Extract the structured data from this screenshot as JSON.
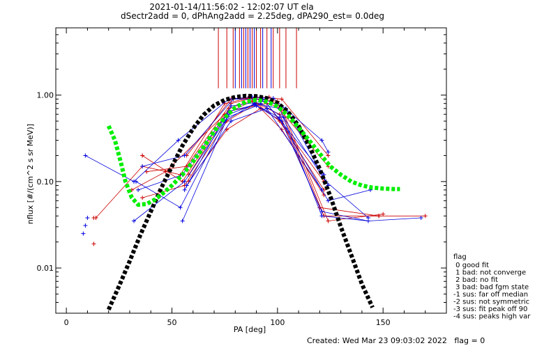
{
  "chart_data": {
    "type": "line",
    "title_line1": "2021-01-14/11:56:02 - 12:02:07 UT ela",
    "title_line2": "dSectr2add = 0, dPhAng2add = 2.25deg, dPA290_est=    0.0deg",
    "xlabel": "PA [deg]",
    "ylabel": "nflux [#/(cm^2 s sr MeV)]",
    "xlim": [
      -5,
      180
    ],
    "ylim": [
      0.003,
      6.0
    ],
    "y_scale": "log",
    "x_ticks": [
      0,
      50,
      100,
      150
    ],
    "y_ticks": [
      0.01,
      0.1,
      1.0
    ],
    "y_tick_labels": [
      "0.01",
      "0.10",
      "1.00"
    ],
    "colors": {
      "red": "#cc0000",
      "blue": "#0000dd",
      "green": "#00ee00",
      "black": "#000000"
    },
    "red_lines_x": [
      72,
      76,
      79,
      82,
      84,
      86,
      88,
      90,
      92,
      95,
      98,
      101,
      104,
      109
    ],
    "blue_lines_x": [
      80,
      83,
      85,
      87,
      89,
      93,
      97
    ],
    "red_series": [
      [
        [
          14,
          0.038
        ],
        [
          36,
          0.15
        ],
        [
          54,
          0.12
        ],
        [
          75,
          0.8
        ],
        [
          86,
          0.92
        ],
        [
          100,
          0.85
        ],
        [
          122,
          0.04
        ],
        [
          148,
          0.04
        ],
        [
          170,
          0.04
        ]
      ],
      [
        [
          36,
          0.2
        ],
        [
          55,
          0.1
        ],
        [
          77,
          0.7
        ],
        [
          90,
          0.9
        ],
        [
          102,
          0.7
        ],
        [
          124,
          0.035
        ],
        [
          150,
          0.042
        ]
      ],
      [
        [
          31,
          0.08
        ],
        [
          47,
          0.13
        ],
        [
          75,
          0.6
        ],
        [
          88,
          0.85
        ],
        [
          101,
          0.6
        ],
        [
          120,
          0.05
        ],
        [
          148,
          0.04
        ]
      ],
      [
        [
          36,
          0.065
        ],
        [
          56,
          0.09
        ],
        [
          76,
          0.5
        ],
        [
          90,
          0.8
        ],
        [
          101,
          0.5
        ],
        [
          122,
          0.08
        ]
      ],
      [
        [
          38,
          0.13
        ],
        [
          57,
          0.15
        ],
        [
          78,
          0.8
        ],
        [
          90,
          0.95
        ],
        [
          102,
          0.9
        ],
        [
          124,
          0.2
        ]
      ],
      [
        [
          58,
          0.1
        ],
        [
          76,
          0.4
        ],
        [
          92,
          0.7
        ],
        [
          102,
          0.4
        ],
        [
          122,
          0.07
        ]
      ],
      [
        [
          57,
          0.2
        ],
        [
          78,
          0.9
        ],
        [
          96,
          0.95
        ],
        [
          124,
          0.15
        ]
      ],
      [
        [
          58,
          0.12
        ],
        [
          77,
          0.65
        ],
        [
          95,
          0.8
        ],
        [
          122,
          0.1
        ]
      ]
    ],
    "red_isolated": [
      [
        13,
        0.019
      ],
      [
        13,
        0.038
      ],
      [
        36,
        0.2
      ]
    ],
    "blue_series": [
      [
        [
          9,
          0.2
        ],
        [
          32,
          0.1
        ],
        [
          53,
          0.3
        ],
        [
          77,
          0.9
        ],
        [
          88,
          0.95
        ],
        [
          98,
          0.92
        ],
        [
          121,
          0.3
        ],
        [
          124,
          0.22
        ]
      ],
      [
        [
          32,
          0.035
        ],
        [
          56,
          0.1
        ],
        [
          75,
          0.5
        ],
        [
          89,
          0.8
        ],
        [
          101,
          0.7
        ],
        [
          121,
          0.04
        ],
        [
          143,
          0.035
        ],
        [
          168,
          0.038
        ]
      ],
      [
        [
          33,
          0.1
        ],
        [
          54,
          0.05
        ],
        [
          76,
          0.55
        ],
        [
          90,
          0.75
        ],
        [
          102,
          0.5
        ],
        [
          124,
          0.06
        ],
        [
          144,
          0.08
        ]
      ],
      [
        [
          34,
          0.08
        ],
        [
          55,
          0.12
        ],
        [
          77,
          0.65
        ],
        [
          92,
          0.8
        ],
        [
          103,
          0.55
        ],
        [
          124,
          0.09
        ]
      ],
      [
        [
          36,
          0.15
        ],
        [
          56,
          0.2
        ],
        [
          79,
          0.9
        ],
        [
          93,
          0.9
        ],
        [
          104,
          0.7
        ],
        [
          123,
          0.1
        ],
        [
          143,
          0.038
        ]
      ],
      [
        [
          55,
          0.035
        ],
        [
          77,
          0.6
        ],
        [
          89,
          0.78
        ],
        [
          101,
          0.55
        ],
        [
          121,
          0.045
        ],
        [
          143,
          0.035
        ]
      ],
      [
        [
          56,
          0.08
        ],
        [
          78,
          0.75
        ],
        [
          94,
          0.85
        ],
        [
          122,
          0.12
        ]
      ],
      [
        [
          57,
          0.09
        ],
        [
          78,
          0.5
        ],
        [
          95,
          0.7
        ],
        [
          121,
          0.08
        ]
      ]
    ],
    "blue_isolated": [
      [
        8,
        0.025
      ],
      [
        9,
        0.031
      ],
      [
        10,
        0.038
      ]
    ],
    "green_fit": [
      [
        20,
        0.44
      ],
      [
        23,
        0.3
      ],
      [
        26,
        0.16
      ],
      [
        28,
        0.1
      ],
      [
        31,
        0.065
      ],
      [
        34,
        0.054
      ],
      [
        38,
        0.055
      ],
      [
        42,
        0.062
      ],
      [
        46,
        0.074
      ],
      [
        50,
        0.09
      ],
      [
        55,
        0.12
      ],
      [
        60,
        0.17
      ],
      [
        65,
        0.25
      ],
      [
        70,
        0.38
      ],
      [
        75,
        0.55
      ],
      [
        80,
        0.72
      ],
      [
        85,
        0.84
      ],
      [
        90,
        0.88
      ],
      [
        95,
        0.84
      ],
      [
        100,
        0.74
      ],
      [
        105,
        0.58
      ],
      [
        110,
        0.42
      ],
      [
        115,
        0.3
      ],
      [
        120,
        0.21
      ],
      [
        125,
        0.15
      ],
      [
        130,
        0.12
      ],
      [
        135,
        0.1
      ],
      [
        140,
        0.09
      ],
      [
        145,
        0.085
      ],
      [
        150,
        0.083
      ],
      [
        155,
        0.082
      ],
      [
        158,
        0.082
      ]
    ],
    "black_fit": [
      [
        20,
        0.0033
      ],
      [
        25,
        0.0062
      ],
      [
        30,
        0.012
      ],
      [
        35,
        0.024
      ],
      [
        40,
        0.045
      ],
      [
        45,
        0.085
      ],
      [
        50,
        0.15
      ],
      [
        55,
        0.26
      ],
      [
        60,
        0.41
      ],
      [
        65,
        0.59
      ],
      [
        70,
        0.76
      ],
      [
        75,
        0.88
      ],
      [
        80,
        0.95
      ],
      [
        85,
        0.98
      ],
      [
        90,
        0.97
      ],
      [
        95,
        0.92
      ],
      [
        100,
        0.81
      ],
      [
        105,
        0.64
      ],
      [
        110,
        0.44
      ],
      [
        115,
        0.26
      ],
      [
        120,
        0.14
      ],
      [
        125,
        0.068
      ],
      [
        130,
        0.03
      ],
      [
        135,
        0.014
      ],
      [
        140,
        0.0065
      ],
      [
        145,
        0.0035
      ]
    ],
    "legend": {
      "title": "flag",
      "entries": [
        " 0 good fit",
        " 1 bad: not converge",
        " 2 bad: no fit",
        " 3 bad: bad fgm state",
        "-1 sus: far off median",
        "-2 sus: not symmetric",
        "-3 sus: fit peak off 90",
        "-4 sus: peaks high var"
      ]
    },
    "footer": "Created: Wed Mar 23 09:03:02 2022   flag = 0"
  }
}
